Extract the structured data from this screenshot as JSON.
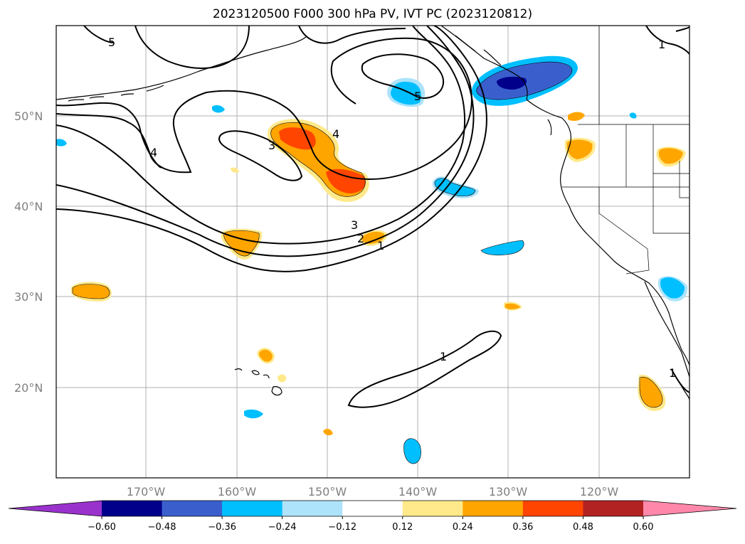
{
  "title": "2023120500 F000 300 hPa PV, IVT PC (2023120812)",
  "map": {
    "lat_labels": [
      "50°N",
      "40°N",
      "30°N",
      "20°N"
    ],
    "lon_labels": [
      "170°W",
      "160°W",
      "150°W",
      "140°W",
      "130°W",
      "120°W"
    ],
    "contour_labels": [
      "5",
      "4",
      "3",
      "4",
      "5",
      "3",
      "2",
      "1",
      "1",
      "1",
      "1"
    ]
  },
  "colorbar": {
    "colors": [
      "#9932CC",
      "#00008B",
      "#3A5FCD",
      "#00BFFF",
      "#ADE3FB",
      "#FFFFFF",
      "#FFE98A",
      "#FFA500",
      "#FF4500",
      "#B22222",
      "#FF88AA"
    ],
    "tick_labels": [
      "−0.60",
      "−0.48",
      "−0.36",
      "−0.24",
      "−0.12",
      "0.12",
      "0.24",
      "0.36",
      "0.48",
      "0.60"
    ]
  }
}
